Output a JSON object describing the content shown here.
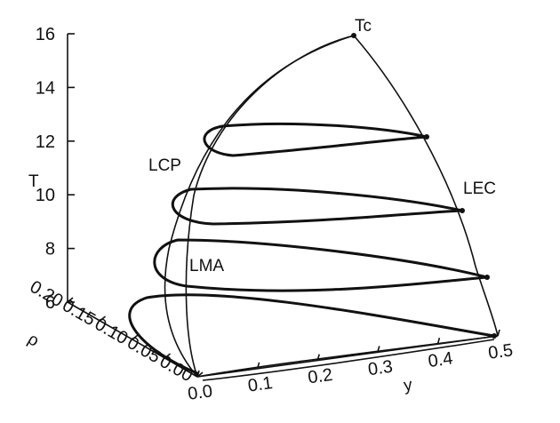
{
  "chart_data": {
    "type": "line",
    "title": "",
    "axes": {
      "T": {
        "label": "T",
        "ticks": [
          "6",
          "8",
          "10",
          "12",
          "14",
          "16"
        ],
        "range": [
          6,
          16
        ]
      },
      "rho": {
        "label": "ρ",
        "ticks": [
          "0.00",
          "0.05",
          "0.10",
          "0.15",
          "0.20"
        ],
        "range": [
          0,
          0.2
        ]
      },
      "y": {
        "label": "y",
        "ticks": [
          "0.0",
          "0.1",
          "0.2",
          "0.3",
          "0.4",
          "0.5"
        ],
        "range": [
          0,
          0.5
        ]
      }
    },
    "annotations": [
      {
        "text": "Tc",
        "T": 16,
        "y": 0.5
      },
      {
        "text": "LCP",
        "T": 11.8
      },
      {
        "text": "LEC",
        "T": 10.2
      },
      {
        "text": "LMA",
        "T": 7.2
      }
    ],
    "isotherm_loops_T": [
      12.5,
      10.5,
      8.0,
      6.0
    ],
    "grid": false
  }
}
